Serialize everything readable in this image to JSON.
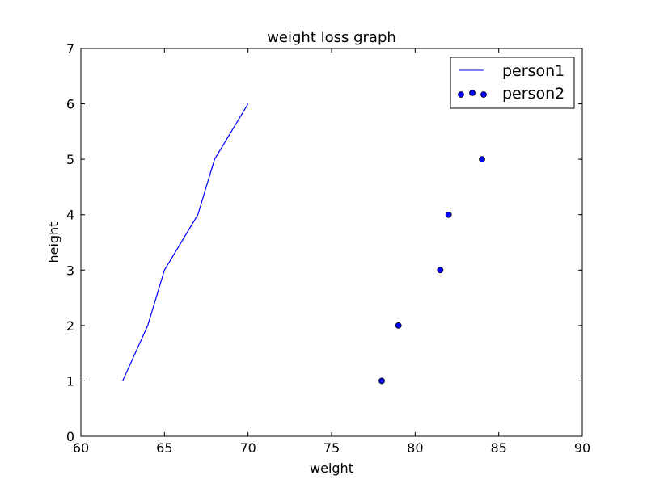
{
  "chart_data": {
    "type": "line+scatter",
    "title": "weight loss graph",
    "xlabel": "weight",
    "ylabel": "height",
    "xlim": [
      60,
      90
    ],
    "ylim": [
      0,
      7
    ],
    "xticks": [
      60,
      65,
      70,
      75,
      80,
      85,
      90
    ],
    "yticks": [
      0,
      1,
      2,
      3,
      4,
      5,
      6,
      7
    ],
    "xtick_labels": [
      "60",
      "65",
      "70",
      "75",
      "80",
      "85",
      "90"
    ],
    "ytick_labels": [
      "0",
      "1",
      "2",
      "3",
      "4",
      "5",
      "6",
      "7"
    ],
    "legend_position": "top-right",
    "series": [
      {
        "name": "person1",
        "kind": "line",
        "color": "#0000ff",
        "x": [
          62.5,
          64,
          65,
          67,
          68,
          70
        ],
        "y": [
          1,
          2,
          3,
          4,
          5,
          6
        ]
      },
      {
        "name": "person2",
        "kind": "scatter",
        "color": "#0000ff",
        "edge_color": "#000000",
        "x": [
          78,
          79,
          81.5,
          82,
          84
        ],
        "y": [
          1,
          2,
          3,
          4,
          5
        ]
      }
    ]
  }
}
